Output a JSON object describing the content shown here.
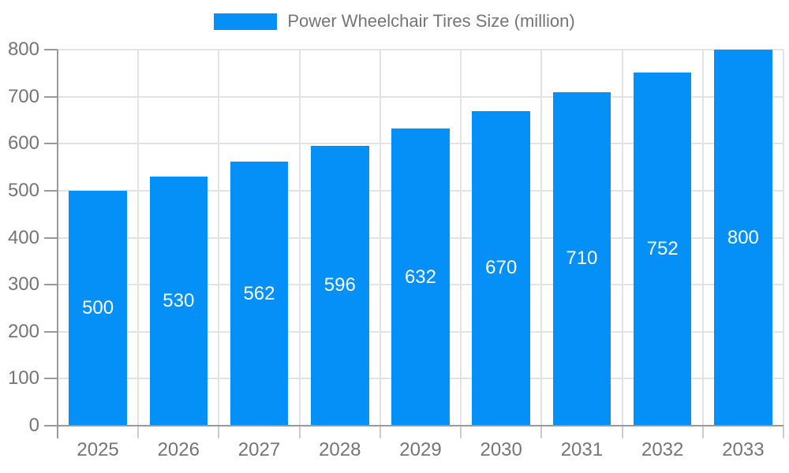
{
  "chart_data": {
    "type": "bar",
    "title": "Power Wheelchair Tires Size (million)",
    "legend": [
      "Power Wheelchair Tires Size (million)"
    ],
    "legend_position": "top",
    "categories": [
      "2025",
      "2026",
      "2027",
      "2028",
      "2029",
      "2030",
      "2031",
      "2032",
      "2033"
    ],
    "values": [
      500,
      530,
      562,
      596,
      632,
      670,
      710,
      752,
      800
    ],
    "xlabel": "",
    "ylabel": "",
    "ylim": [
      0,
      800
    ],
    "y_ticks": [
      0,
      100,
      200,
      300,
      400,
      500,
      600,
      700,
      800
    ],
    "grid": true,
    "value_labels": "inside-center",
    "colors": {
      "bar": "#0590f8",
      "grid": "#e3e3e3",
      "axis": "#999999",
      "tick": "#cccccc",
      "text": "#757575",
      "value_label": "#ffffff",
      "background": "#ffffff"
    }
  }
}
